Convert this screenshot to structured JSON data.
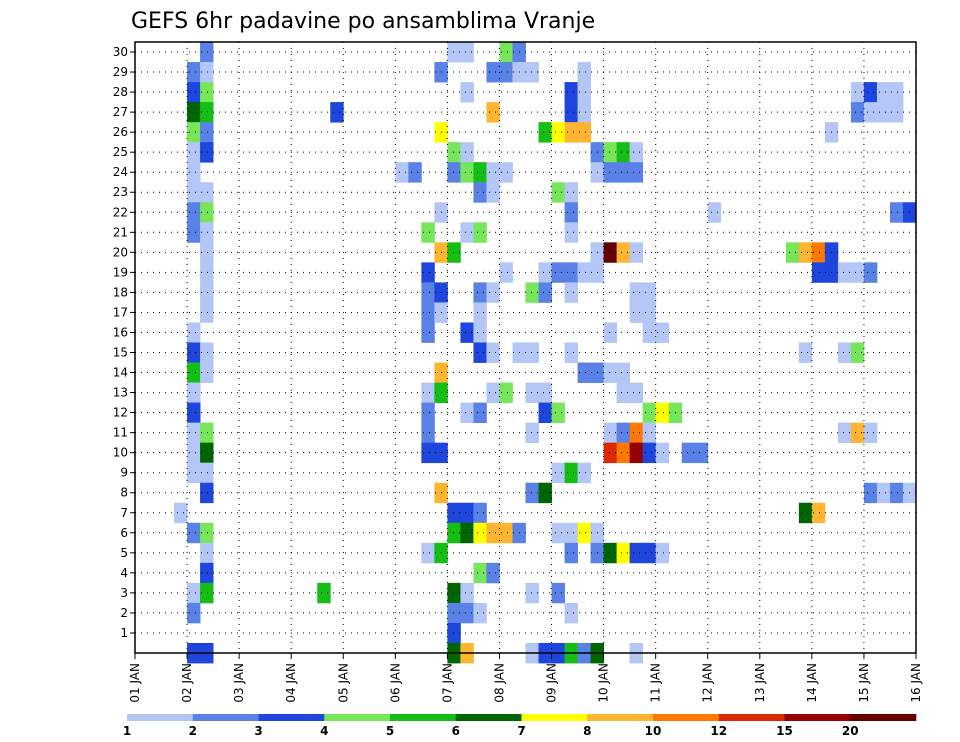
{
  "chart_data": {
    "type": "heatmap",
    "title": "GEFS 6hr padavine po ansamblima Vranje",
    "xlabel": "",
    "ylabel": "",
    "x_tick_labels": [
      "01 JAN",
      "02 JAN",
      "03 JAN",
      "04 JAN",
      "05 JAN",
      "06 JAN",
      "07 JAN",
      "08 JAN",
      "09 JAN",
      "10 JAN",
      "11 JAN",
      "12 JAN",
      "13 JAN",
      "14 JAN",
      "15 JAN",
      "16 JAN"
    ],
    "x_range_days": [
      1,
      16
    ],
    "step_hours": 6,
    "y_tick_labels": [
      "1",
      "2",
      "3",
      "4",
      "5",
      "6",
      "7",
      "8",
      "9",
      "10",
      "11",
      "12",
      "13",
      "14",
      "15",
      "16",
      "17",
      "18",
      "19",
      "20",
      "21",
      "22",
      "23",
      "24",
      "25",
      "26",
      "27",
      "28",
      "29",
      "30"
    ],
    "y_range": [
      0,
      30
    ],
    "grid": true,
    "colorbar": {
      "levels": [
        "1",
        "2",
        "3",
        "4",
        "5",
        "6",
        "7",
        "8",
        "10",
        "12",
        "15",
        "20"
      ],
      "colors": [
        "#b4c6f5",
        "#5a82e6",
        "#1e46dc",
        "#78e65a",
        "#14be14",
        "#006400",
        "#ffff00",
        "#ffb432",
        "#ff7800",
        "#dc2800",
        "#960000",
        "#640000"
      ]
    },
    "cells": [
      [
        "02 JAN 06",
        30,
        "#5a82e6"
      ],
      [
        "07 JAN 00",
        30,
        "#b4c6f5"
      ],
      [
        "07 JAN 06",
        30,
        "#b4c6f5"
      ],
      [
        "08 JAN 00",
        30,
        "#78e65a"
      ],
      [
        "08 JAN 06",
        30,
        "#5a82e6"
      ],
      [
        "02 JAN 00",
        29,
        "#5a82e6"
      ],
      [
        "02 JAN 06",
        29,
        "#b4c6f5"
      ],
      [
        "06 JAN 18",
        29,
        "#5a82e6"
      ],
      [
        "07 JAN 18",
        29,
        "#5a82e6"
      ],
      [
        "08 JAN 00",
        29,
        "#5a82e6"
      ],
      [
        "08 JAN 06",
        29,
        "#b4c6f5"
      ],
      [
        "08 JAN 12",
        29,
        "#b4c6f5"
      ],
      [
        "09 JAN 12",
        29,
        "#b4c6f5"
      ],
      [
        "02 JAN 00",
        28,
        "#1e46dc"
      ],
      [
        "02 JAN 06",
        28,
        "#78e65a"
      ],
      [
        "07 JAN 06",
        28,
        "#b4c6f5"
      ],
      [
        "09 JAN 06",
        28,
        "#1e46dc"
      ],
      [
        "09 JAN 12",
        28,
        "#b4c6f5"
      ],
      [
        "14 JAN 18",
        28,
        "#b4c6f5"
      ],
      [
        "15 JAN 00",
        28,
        "#1e46dc"
      ],
      [
        "15 JAN 06",
        28,
        "#b4c6f5"
      ],
      [
        "15 JAN 12",
        28,
        "#b4c6f5"
      ],
      [
        "02 JAN 00",
        27,
        "#006400"
      ],
      [
        "02 JAN 06",
        27,
        "#14be14"
      ],
      [
        "04 JAN 18",
        27,
        "#1e46dc"
      ],
      [
        "07 JAN 18",
        27,
        "#ffb432"
      ],
      [
        "09 JAN 06",
        27,
        "#1e46dc"
      ],
      [
        "09 JAN 12",
        27,
        "#b4c6f5"
      ],
      [
        "14 JAN 18",
        27,
        "#5a82e6"
      ],
      [
        "15 JAN 00",
        27,
        "#b4c6f5"
      ],
      [
        "15 JAN 06",
        27,
        "#b4c6f5"
      ],
      [
        "15 JAN 12",
        27,
        "#b4c6f5"
      ],
      [
        "02 JAN 00",
        26,
        "#78e65a"
      ],
      [
        "02 JAN 06",
        26,
        "#5a82e6"
      ],
      [
        "06 JAN 18",
        26,
        "#ffff00"
      ],
      [
        "08 JAN 18",
        26,
        "#14be14"
      ],
      [
        "09 JAN 00",
        26,
        "#ffff00"
      ],
      [
        "09 JAN 06",
        26,
        "#ffb432"
      ],
      [
        "09 JAN 12",
        26,
        "#ffb432"
      ],
      [
        "14 JAN 06",
        26,
        "#b4c6f5"
      ],
      [
        "02 JAN 00",
        25,
        "#b4c6f5"
      ],
      [
        "02 JAN 06",
        25,
        "#1e46dc"
      ],
      [
        "07 JAN 00",
        25,
        "#78e65a"
      ],
      [
        "07 JAN 06",
        25,
        "#b4c6f5"
      ],
      [
        "09 JAN 18",
        25,
        "#5a82e6"
      ],
      [
        "10 JAN 00",
        25,
        "#78e65a"
      ],
      [
        "10 JAN 06",
        25,
        "#14be14"
      ],
      [
        "10 JAN 12",
        25,
        "#b4c6f5"
      ],
      [
        "02 JAN 00",
        24,
        "#b4c6f5"
      ],
      [
        "06 JAN 00",
        24,
        "#b4c6f5"
      ],
      [
        "06 JAN 06",
        24,
        "#5a82e6"
      ],
      [
        "07 JAN 00",
        24,
        "#5a82e6"
      ],
      [
        "07 JAN 06",
        24,
        "#78e65a"
      ],
      [
        "07 JAN 12",
        24,
        "#14be14"
      ],
      [
        "07 JAN 18",
        24,
        "#b4c6f5"
      ],
      [
        "08 JAN 00",
        24,
        "#b4c6f5"
      ],
      [
        "09 JAN 18",
        24,
        "#b4c6f5"
      ],
      [
        "10 JAN 00",
        24,
        "#5a82e6"
      ],
      [
        "10 JAN 06",
        24,
        "#5a82e6"
      ],
      [
        "10 JAN 12",
        24,
        "#5a82e6"
      ],
      [
        "02 JAN 00",
        23,
        "#b4c6f5"
      ],
      [
        "02 JAN 06",
        23,
        "#b4c6f5"
      ],
      [
        "07 JAN 12",
        23,
        "#5a82e6"
      ],
      [
        "07 JAN 18",
        23,
        "#b4c6f5"
      ],
      [
        "09 JAN 00",
        23,
        "#78e65a"
      ],
      [
        "09 JAN 06",
        23,
        "#b4c6f5"
      ],
      [
        "02 JAN 00",
        22,
        "#5a82e6"
      ],
      [
        "02 JAN 06",
        22,
        "#78e65a"
      ],
      [
        "06 JAN 18",
        22,
        "#b4c6f5"
      ],
      [
        "09 JAN 06",
        22,
        "#5a82e6"
      ],
      [
        "12 JAN 00",
        22,
        "#b4c6f5"
      ],
      [
        "15 JAN 12",
        22,
        "#5a82e6"
      ],
      [
        "15 JAN 18",
        22,
        "#1e46dc"
      ],
      [
        "02 JAN 00",
        21,
        "#5a82e6"
      ],
      [
        "02 JAN 06",
        21,
        "#b4c6f5"
      ],
      [
        "06 JAN 12",
        21,
        "#78e65a"
      ],
      [
        "07 JAN 06",
        21,
        "#b4c6f5"
      ],
      [
        "07 JAN 12",
        21,
        "#78e65a"
      ],
      [
        "09 JAN 06",
        21,
        "#b4c6f5"
      ],
      [
        "02 JAN 06",
        20,
        "#b4c6f5"
      ],
      [
        "06 JAN 18",
        20,
        "#ffb432"
      ],
      [
        "07 JAN 00",
        20,
        "#14be14"
      ],
      [
        "09 JAN 18",
        20,
        "#b4c6f5"
      ],
      [
        "10 JAN 00",
        20,
        "#640000"
      ],
      [
        "10 JAN 06",
        20,
        "#ffb432"
      ],
      [
        "10 JAN 12",
        20,
        "#b4c6f5"
      ],
      [
        "13 JAN 12",
        20,
        "#78e65a"
      ],
      [
        "13 JAN 18",
        20,
        "#ffb432"
      ],
      [
        "14 JAN 00",
        20,
        "#ff7800"
      ],
      [
        "14 JAN 06",
        20,
        "#1e46dc"
      ],
      [
        "02 JAN 06",
        19,
        "#b4c6f5"
      ],
      [
        "06 JAN 12",
        19,
        "#1e46dc"
      ],
      [
        "08 JAN 00",
        19,
        "#b4c6f5"
      ],
      [
        "08 JAN 18",
        19,
        "#b4c6f5"
      ],
      [
        "09 JAN 00",
        19,
        "#5a82e6"
      ],
      [
        "09 JAN 06",
        19,
        "#5a82e6"
      ],
      [
        "09 JAN 12",
        19,
        "#b4c6f5"
      ],
      [
        "09 JAN 18",
        19,
        "#b4c6f5"
      ],
      [
        "14 JAN 00",
        19,
        "#1e46dc"
      ],
      [
        "14 JAN 06",
        19,
        "#1e46dc"
      ],
      [
        "14 JAN 12",
        19,
        "#b4c6f5"
      ],
      [
        "14 JAN 18",
        19,
        "#b4c6f5"
      ],
      [
        "15 JAN 00",
        19,
        "#5a82e6"
      ],
      [
        "02 JAN 06",
        18,
        "#b4c6f5"
      ],
      [
        "06 JAN 12",
        18,
        "#5a82e6"
      ],
      [
        "06 JAN 18",
        18,
        "#1e46dc"
      ],
      [
        "07 JAN 12",
        18,
        "#5a82e6"
      ],
      [
        "07 JAN 18",
        18,
        "#b4c6f5"
      ],
      [
        "08 JAN 12",
        18,
        "#78e65a"
      ],
      [
        "08 JAN 18",
        18,
        "#5a82e6"
      ],
      [
        "09 JAN 06",
        18,
        "#b4c6f5"
      ],
      [
        "10 JAN 12",
        18,
        "#b4c6f5"
      ],
      [
        "10 JAN 18",
        18,
        "#b4c6f5"
      ],
      [
        "02 JAN 06",
        17,
        "#b4c6f5"
      ],
      [
        "06 JAN 12",
        17,
        "#5a82e6"
      ],
      [
        "06 JAN 18",
        17,
        "#b4c6f5"
      ],
      [
        "07 JAN 12",
        17,
        "#b4c6f5"
      ],
      [
        "10 JAN 12",
        17,
        "#b4c6f5"
      ],
      [
        "10 JAN 18",
        17,
        "#b4c6f5"
      ],
      [
        "02 JAN 00",
        16,
        "#b4c6f5"
      ],
      [
        "06 JAN 12",
        16,
        "#5a82e6"
      ],
      [
        "07 JAN 06",
        16,
        "#1e46dc"
      ],
      [
        "07 JAN 12",
        16,
        "#b4c6f5"
      ],
      [
        "10 JAN 00",
        16,
        "#b4c6f5"
      ],
      [
        "10 JAN 18",
        16,
        "#b4c6f5"
      ],
      [
        "11 JAN 00",
        16,
        "#b4c6f5"
      ],
      [
        "02 JAN 00",
        15,
        "#1e46dc"
      ],
      [
        "02 JAN 06",
        15,
        "#b4c6f5"
      ],
      [
        "07 JAN 12",
        15,
        "#1e46dc"
      ],
      [
        "07 JAN 18",
        15,
        "#b4c6f5"
      ],
      [
        "08 JAN 06",
        15,
        "#b4c6f5"
      ],
      [
        "08 JAN 12",
        15,
        "#b4c6f5"
      ],
      [
        "09 JAN 06",
        15,
        "#b4c6f5"
      ],
      [
        "13 JAN 18",
        15,
        "#b4c6f5"
      ],
      [
        "14 JAN 12",
        15,
        "#b4c6f5"
      ],
      [
        "14 JAN 18",
        15,
        "#78e65a"
      ],
      [
        "02 JAN 00",
        14,
        "#14be14"
      ],
      [
        "02 JAN 06",
        14,
        "#b4c6f5"
      ],
      [
        "06 JAN 18",
        14,
        "#ffb432"
      ],
      [
        "09 JAN 12",
        14,
        "#5a82e6"
      ],
      [
        "09 JAN 18",
        14,
        "#5a82e6"
      ],
      [
        "10 JAN 00",
        14,
        "#b4c6f5"
      ],
      [
        "10 JAN 06",
        14,
        "#b4c6f5"
      ],
      [
        "02 JAN 00",
        13,
        "#b4c6f5"
      ],
      [
        "06 JAN 12",
        13,
        "#b4c6f5"
      ],
      [
        "06 JAN 18",
        13,
        "#14be14"
      ],
      [
        "07 JAN 18",
        13,
        "#b4c6f5"
      ],
      [
        "08 JAN 00",
        13,
        "#78e65a"
      ],
      [
        "08 JAN 12",
        13,
        "#b4c6f5"
      ],
      [
        "08 JAN 18",
        13,
        "#b4c6f5"
      ],
      [
        "10 JAN 06",
        13,
        "#b4c6f5"
      ],
      [
        "10 JAN 12",
        13,
        "#b4c6f5"
      ],
      [
        "02 JAN 00",
        12,
        "#1e46dc"
      ],
      [
        "06 JAN 12",
        12,
        "#5a82e6"
      ],
      [
        "07 JAN 06",
        12,
        "#b4c6f5"
      ],
      [
        "07 JAN 12",
        12,
        "#5a82e6"
      ],
      [
        "08 JAN 18",
        12,
        "#1e46dc"
      ],
      [
        "09 JAN 00",
        12,
        "#78e65a"
      ],
      [
        "10 JAN 18",
        12,
        "#78e65a"
      ],
      [
        "11 JAN 00",
        12,
        "#ffff00"
      ],
      [
        "11 JAN 06",
        12,
        "#78e65a"
      ],
      [
        "02 JAN 00",
        11,
        "#b4c6f5"
      ],
      [
        "02 JAN 06",
        11,
        "#78e65a"
      ],
      [
        "06 JAN 12",
        11,
        "#5a82e6"
      ],
      [
        "08 JAN 12",
        11,
        "#b4c6f5"
      ],
      [
        "10 JAN 00",
        11,
        "#b4c6f5"
      ],
      [
        "10 JAN 06",
        11,
        "#5a82e6"
      ],
      [
        "10 JAN 12",
        11,
        "#ff7800"
      ],
      [
        "10 JAN 18",
        11,
        "#b4c6f5"
      ],
      [
        "14 JAN 12",
        11,
        "#b4c6f5"
      ],
      [
        "14 JAN 18",
        11,
        "#ffb432"
      ],
      [
        "15 JAN 00",
        11,
        "#b4c6f5"
      ],
      [
        "02 JAN 00",
        10,
        "#b4c6f5"
      ],
      [
        "02 JAN 06",
        10,
        "#006400"
      ],
      [
        "06 JAN 12",
        10,
        "#1e46dc"
      ],
      [
        "06 JAN 18",
        10,
        "#1e46dc"
      ],
      [
        "10 JAN 00",
        10,
        "#dc2800"
      ],
      [
        "10 JAN 06",
        10,
        "#ff7800"
      ],
      [
        "10 JAN 12",
        10,
        "#960000"
      ],
      [
        "10 JAN 18",
        10,
        "#1e46dc"
      ],
      [
        "11 JAN 00",
        10,
        "#b4c6f5"
      ],
      [
        "11 JAN 12",
        10,
        "#5a82e6"
      ],
      [
        "11 JAN 18",
        10,
        "#5a82e6"
      ],
      [
        "02 JAN 00",
        9,
        "#b4c6f5"
      ],
      [
        "02 JAN 06",
        9,
        "#b4c6f5"
      ],
      [
        "09 JAN 00",
        9,
        "#b4c6f5"
      ],
      [
        "09 JAN 06",
        9,
        "#14be14"
      ],
      [
        "09 JAN 12",
        9,
        "#b4c6f5"
      ],
      [
        "02 JAN 06",
        8,
        "#1e46dc"
      ],
      [
        "06 JAN 18",
        8,
        "#ffb432"
      ],
      [
        "08 JAN 12",
        8,
        "#5a82e6"
      ],
      [
        "08 JAN 18",
        8,
        "#006400"
      ],
      [
        "15 JAN 00",
        8,
        "#5a82e6"
      ],
      [
        "15 JAN 06",
        8,
        "#b4c6f5"
      ],
      [
        "15 JAN 12",
        8,
        "#5a82e6"
      ],
      [
        "15 JAN 18",
        8,
        "#b4c6f5"
      ],
      [
        "01 JAN 18",
        7,
        "#b4c6f5"
      ],
      [
        "07 JAN 00",
        7,
        "#1e46dc"
      ],
      [
        "07 JAN 06",
        7,
        "#1e46dc"
      ],
      [
        "07 JAN 12",
        7,
        "#5a82e6"
      ],
      [
        "13 JAN 18",
        7,
        "#006400"
      ],
      [
        "14 JAN 00",
        7,
        "#ffb432"
      ],
      [
        "02 JAN 00",
        6,
        "#5a82e6"
      ],
      [
        "02 JAN 06",
        6,
        "#78e65a"
      ],
      [
        "07 JAN 00",
        6,
        "#14be14"
      ],
      [
        "07 JAN 06",
        6,
        "#006400"
      ],
      [
        "07 JAN 12",
        6,
        "#ffff00"
      ],
      [
        "07 JAN 18",
        6,
        "#ffb432"
      ],
      [
        "08 JAN 00",
        6,
        "#ffb432"
      ],
      [
        "08 JAN 06",
        6,
        "#5a82e6"
      ],
      [
        "09 JAN 00",
        6,
        "#b4c6f5"
      ],
      [
        "09 JAN 06",
        6,
        "#b4c6f5"
      ],
      [
        "09 JAN 12",
        6,
        "#ffff00"
      ],
      [
        "09 JAN 18",
        6,
        "#b4c6f5"
      ],
      [
        "02 JAN 06",
        5,
        "#b4c6f5"
      ],
      [
        "06 JAN 12",
        5,
        "#b4c6f5"
      ],
      [
        "06 JAN 18",
        5,
        "#14be14"
      ],
      [
        "09 JAN 06",
        5,
        "#5a82e6"
      ],
      [
        "09 JAN 18",
        5,
        "#5a82e6"
      ],
      [
        "10 JAN 00",
        5,
        "#006400"
      ],
      [
        "10 JAN 06",
        5,
        "#ffff00"
      ],
      [
        "10 JAN 12",
        5,
        "#1e46dc"
      ],
      [
        "10 JAN 18",
        5,
        "#1e46dc"
      ],
      [
        "11 JAN 00",
        5,
        "#b4c6f5"
      ],
      [
        "02 JAN 06",
        4,
        "#1e46dc"
      ],
      [
        "07 JAN 12",
        4,
        "#78e65a"
      ],
      [
        "07 JAN 18",
        4,
        "#5a82e6"
      ],
      [
        "02 JAN 00",
        3,
        "#b4c6f5"
      ],
      [
        "02 JAN 06",
        3,
        "#14be14"
      ],
      [
        "04 JAN 12",
        3,
        "#14be14"
      ],
      [
        "07 JAN 00",
        3,
        "#006400"
      ],
      [
        "07 JAN 06",
        3,
        "#b4c6f5"
      ],
      [
        "08 JAN 12",
        3,
        "#b4c6f5"
      ],
      [
        "09 JAN 00",
        3,
        "#5a82e6"
      ],
      [
        "02 JAN 00",
        2,
        "#5a82e6"
      ],
      [
        "07 JAN 00",
        2,
        "#5a82e6"
      ],
      [
        "07 JAN 06",
        2,
        "#5a82e6"
      ],
      [
        "07 JAN 12",
        2,
        "#b4c6f5"
      ],
      [
        "09 JAN 06",
        2,
        "#b4c6f5"
      ],
      [
        "07 JAN 00",
        1,
        "#1e46dc"
      ],
      [
        "02 JAN 00",
        0,
        "#1e46dc"
      ],
      [
        "02 JAN 06",
        0,
        "#1e46dc"
      ],
      [
        "07 JAN 00",
        0,
        "#006400"
      ],
      [
        "07 JAN 06",
        0,
        "#ffb432"
      ],
      [
        "08 JAN 12",
        0,
        "#b4c6f5"
      ],
      [
        "08 JAN 18",
        0,
        "#1e46dc"
      ],
      [
        "09 JAN 00",
        0,
        "#1e46dc"
      ],
      [
        "09 JAN 06",
        0,
        "#14be14"
      ],
      [
        "09 JAN 12",
        0,
        "#5a82e6"
      ],
      [
        "09 JAN 18",
        0,
        "#006400"
      ],
      [
        "10 JAN 12",
        0,
        "#b4c6f5"
      ]
    ]
  }
}
